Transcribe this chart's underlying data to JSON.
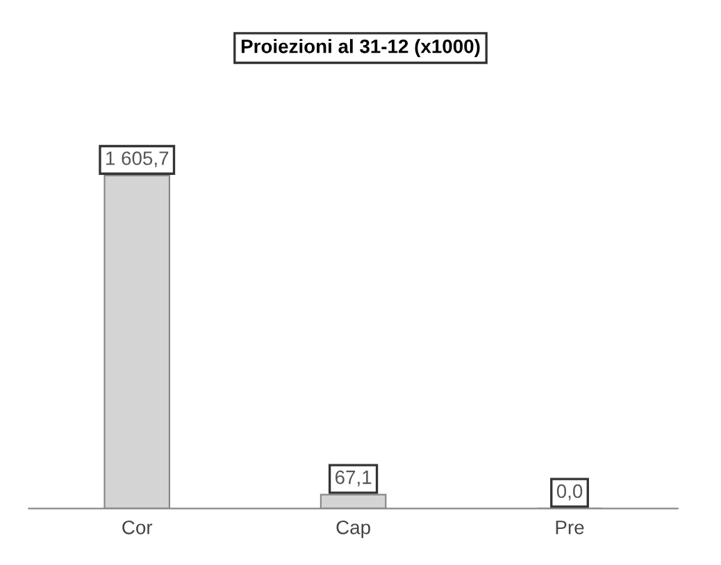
{
  "chart_data": {
    "type": "bar",
    "title": "Proiezioni al 31-12 (x1000)",
    "categories": [
      "Cor",
      "Cap",
      "Pre"
    ],
    "values": [
      1605.7,
      67.1,
      0.0
    ],
    "value_labels": [
      "1 605,7",
      "67,1",
      "0,0"
    ],
    "color": "#d4d4d4",
    "grid": false
  }
}
